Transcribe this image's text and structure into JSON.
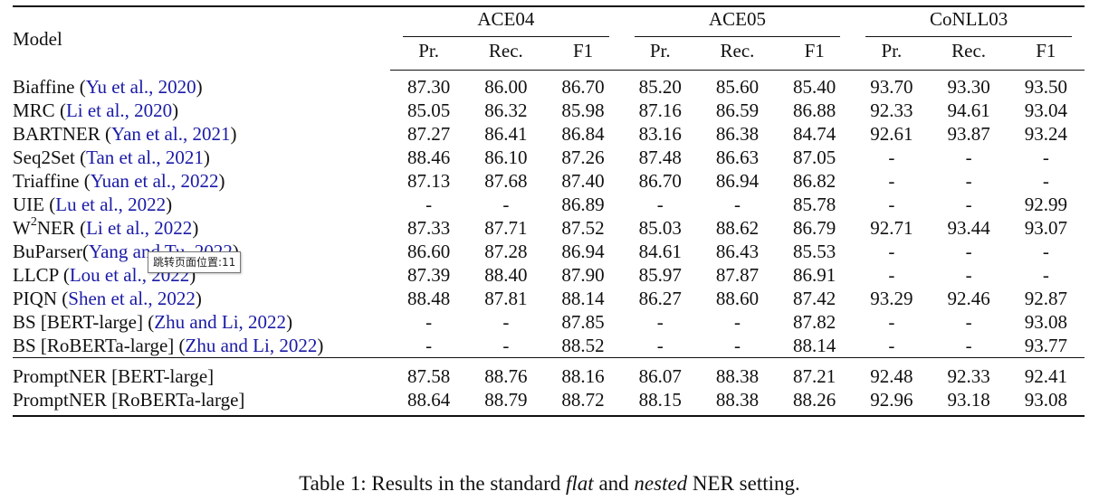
{
  "table": {
    "model_header": "Model",
    "groups": [
      "ACE04",
      "ACE05",
      "CoNLL03"
    ],
    "metrics": [
      "Pr.",
      "Rec.",
      "F1"
    ],
    "rows": [
      {
        "name": "Biaffine",
        "name_sup": "",
        "name_rest": "",
        "cite": "Yu et al., 2020",
        "open": " (",
        "close": ")",
        "values": [
          "87.30",
          "86.00",
          "86.70",
          "85.20",
          "85.60",
          "85.40",
          "93.70",
          "93.30",
          "93.50"
        ],
        "bold": []
      },
      {
        "name": "MRC",
        "name_sup": "",
        "name_rest": "",
        "cite": "Li et al., 2020",
        "open": " (",
        "close": ")",
        "values": [
          "85.05",
          "86.32",
          "85.98",
          "87.16",
          "86.59",
          "86.88",
          "92.33",
          "94.61",
          "93.04"
        ],
        "bold": []
      },
      {
        "name": "BARTNER",
        "name_sup": "",
        "name_rest": "",
        "cite": "Yan et al., 2021",
        "open": " (",
        "close": ")",
        "values": [
          "87.27",
          "86.41",
          "86.84",
          "83.16",
          "86.38",
          "84.74",
          "92.61",
          "93.87",
          "93.24"
        ],
        "bold": []
      },
      {
        "name": "Seq2Set",
        "name_sup": "",
        "name_rest": "",
        "cite": "Tan et al., 2021",
        "open": " (",
        "close": ")",
        "values": [
          "88.46",
          "86.10",
          "87.26",
          "87.48",
          "86.63",
          "87.05",
          "-",
          "-",
          "-"
        ],
        "bold": []
      },
      {
        "name": "Triaffine",
        "name_sup": "",
        "name_rest": "",
        "cite": "Yuan et al., 2022",
        "open": " (",
        "close": ")",
        "values": [
          "87.13",
          "87.68",
          "87.40",
          "86.70",
          "86.94",
          "86.82",
          "-",
          "-",
          "-"
        ],
        "bold": []
      },
      {
        "name": "UIE",
        "name_sup": "",
        "name_rest": "",
        "cite": "Lu et al., 2022",
        "open": " (",
        "close": ")",
        "values": [
          "-",
          "-",
          "86.89",
          "-",
          "-",
          "85.78",
          "-",
          "-",
          "92.99"
        ],
        "bold": []
      },
      {
        "name": "W",
        "name_sup": "2",
        "name_rest": "NER",
        "cite": "Li et al., 2022",
        "open": " (",
        "close": ")",
        "values": [
          "87.33",
          "87.71",
          "87.52",
          "85.03",
          "88.62",
          "86.79",
          "92.71",
          "93.44",
          "93.07"
        ],
        "bold": []
      },
      {
        "name": "BuParser",
        "name_sup": "",
        "name_rest": "",
        "cite": "Yang and Tu, 2022",
        "open": "(",
        "close": ")",
        "values": [
          "86.60",
          "87.28",
          "86.94",
          "84.61",
          "86.43",
          "85.53",
          "-",
          "-",
          "-"
        ],
        "bold": []
      },
      {
        "name": "LLCP",
        "name_sup": "",
        "name_rest": "",
        "cite": "Lou et al., 2022",
        "open": " (",
        "close": ")",
        "values": [
          "87.39",
          "88.40",
          "87.90",
          "85.97",
          "87.87",
          "86.91",
          "-",
          "-",
          "-"
        ],
        "bold": []
      },
      {
        "name": "PIQN",
        "name_sup": "",
        "name_rest": "",
        "cite": "Shen et al., 2022",
        "open": " (",
        "close": ")",
        "values": [
          "88.48",
          "87.81",
          "88.14",
          "86.27",
          "88.60",
          "87.42",
          "93.29",
          "92.46",
          "92.87"
        ],
        "bold": []
      },
      {
        "name": "BS [BERT-large]",
        "name_sup": "",
        "name_rest": "",
        "cite": "Zhu and Li, 2022",
        "open": " (",
        "close": ")",
        "values": [
          "-",
          "-",
          "87.85",
          "-",
          "-",
          "87.82",
          "-",
          "-",
          "93.08"
        ],
        "bold": []
      },
      {
        "name": "BS [RoBERTa-large]",
        "name_sup": "",
        "name_rest": "",
        "cite": "Zhu and Li, 2022",
        "open": " (",
        "close": ")",
        "values": [
          "-",
          "-",
          "88.52",
          "-",
          "-",
          "88.14",
          "-",
          "-",
          "93.77"
        ],
        "bold": [
          8
        ]
      }
    ],
    "ours": [
      {
        "name": "PromptNER [BERT-large]",
        "values": [
          "87.58",
          "88.76",
          "88.16",
          "86.07",
          "88.38",
          "87.21",
          "92.48",
          "92.33",
          "92.41"
        ],
        "bold": []
      },
      {
        "name": "PromptNER [RoBERTa-large]",
        "values": [
          "88.64",
          "88.79",
          "88.72",
          "88.15",
          "88.38",
          "88.26",
          "92.96",
          "93.18",
          "93.08"
        ],
        "bold": [
          0,
          1,
          2,
          3,
          5
        ]
      }
    ]
  },
  "tooltip": {
    "text": "跳转页面位置:11"
  },
  "caption": {
    "prefix": "Table 1: Results in the standard ",
    "flat": "flat",
    "and": " and ",
    "nested": "nested",
    "suffix": " NER setting."
  },
  "colors": {
    "citation": "#1a1aa6",
    "text": "#111111"
  }
}
